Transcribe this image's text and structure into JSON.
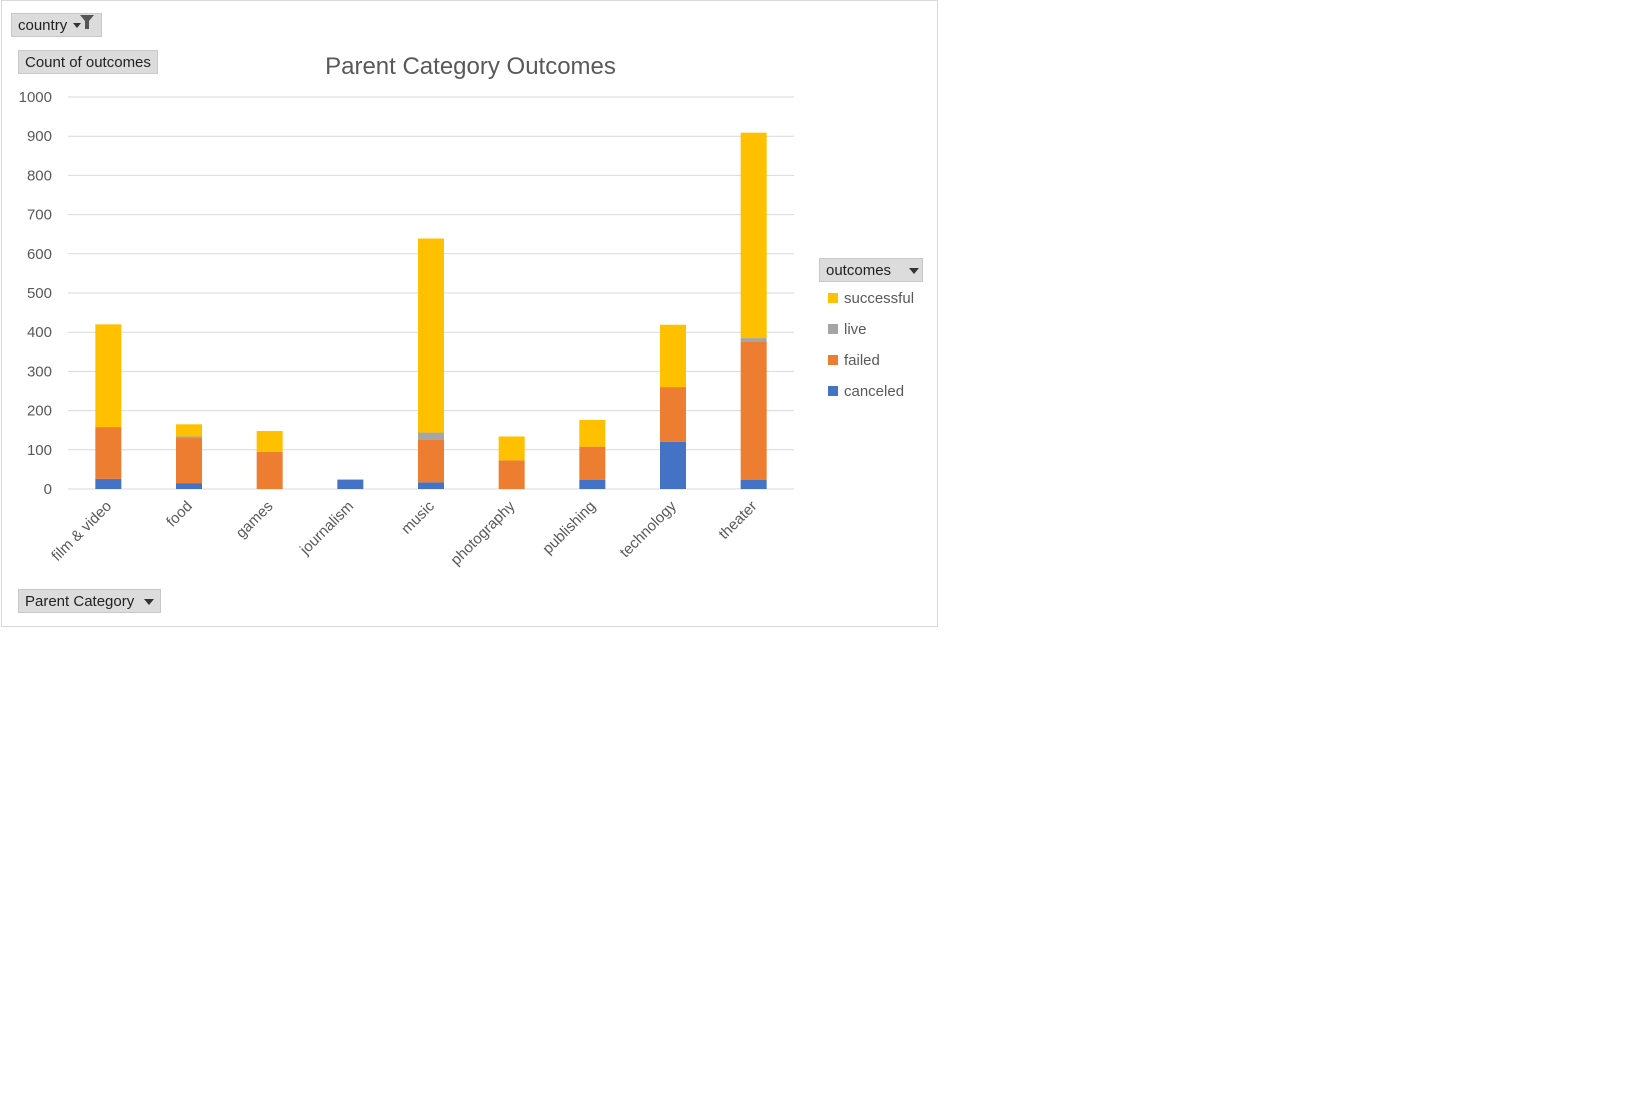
{
  "filters": {
    "country_label": "country",
    "y_field_label": "Count of outcomes",
    "x_field_label": "Parent Category",
    "legend_field_label": "outcomes"
  },
  "colors": {
    "successful": "#FFC000",
    "live": "#A5A5A5",
    "failed": "#ED7D31",
    "canceled": "#4472C4",
    "grid": "#d9d9d9",
    "axis_text": "#595959"
  },
  "chart_data": {
    "type": "bar",
    "stacked": true,
    "title": "Parent Category Outcomes",
    "xlabel": "",
    "ylabel": "",
    "ylim": [
      0,
      1000
    ],
    "yticks": [
      0,
      100,
      200,
      300,
      400,
      500,
      600,
      700,
      800,
      900,
      1000
    ],
    "grid": true,
    "legend_placement": "right",
    "categories": [
      "film & video",
      "food",
      "games",
      "journalism",
      "music",
      "photography",
      "publishing",
      "technology",
      "theater"
    ],
    "series": [
      {
        "name": "canceled",
        "values": [
          26,
          15,
          0,
          24,
          17,
          0,
          23,
          120,
          23
        ]
      },
      {
        "name": "failed",
        "values": [
          132,
          115,
          95,
          0,
          110,
          73,
          85,
          140,
          352
        ]
      },
      {
        "name": "live",
        "values": [
          0,
          4,
          0,
          0,
          17,
          0,
          0,
          0,
          10
        ]
      },
      {
        "name": "successful",
        "values": [
          262,
          31,
          53,
          0,
          495,
          61,
          68,
          159,
          524
        ]
      }
    ],
    "legend_order": [
      "successful",
      "live",
      "failed",
      "canceled"
    ]
  }
}
